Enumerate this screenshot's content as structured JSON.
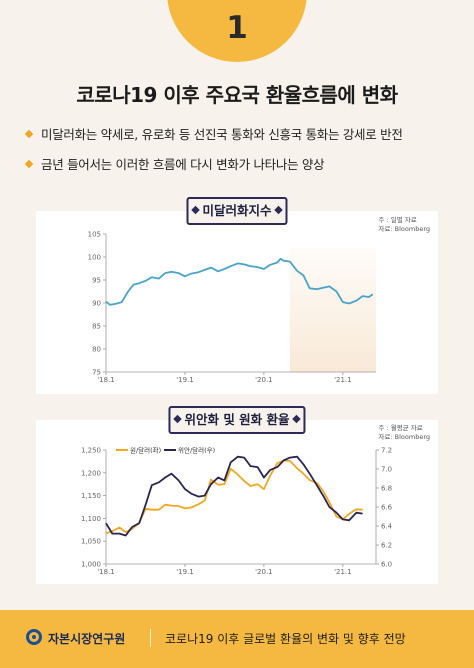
{
  "page_number": "1",
  "title": "코로나19 이후 주요국 환율흐름에 변화",
  "bullets": [
    "미달러화는 약세로, 유로화 등 선진국 통화와 신흥국 통화는 강세로 반전",
    "금년 들어서는 이러한 흐름에 다시 변화가 나타나는 양상"
  ],
  "colors": {
    "accent": "#f5b942",
    "dxy_line": "#4aa3c8",
    "krw_line": "#f0a823",
    "cny_line": "#2b2452",
    "shade": "#f8e7d3",
    "badge_border": "#2d2a57"
  },
  "footer": {
    "logo_icon": "kcmi-logo-icon",
    "org": "자본시장연구원",
    "report_title": "코로나19 이후 글로벌 환율의 변화 및 향후 전망"
  },
  "chart_data": [
    {
      "type": "line",
      "title": "미달러화지수",
      "note": [
        "주 : 일별 자료",
        "자료: Bloomberg"
      ],
      "ylim": [
        75,
        105
      ],
      "yticks": [
        "105",
        "100",
        "95",
        "90",
        "85",
        "80",
        "75"
      ],
      "xtick_labels": [
        "'18.1",
        "'19.1",
        "'20.1",
        "'21.1"
      ],
      "xlim": [
        2018.0,
        2021.42
      ],
      "shaded_region": [
        2020.33,
        2021.42
      ],
      "grid": false,
      "series": [
        {
          "color": "#4aa3c8",
          "x": [
            2018.0,
            2018.05,
            2018.12,
            2018.2,
            2018.28,
            2018.35,
            2018.42,
            2018.5,
            2018.58,
            2018.67,
            2018.75,
            2018.83,
            2018.92,
            2019.0,
            2019.08,
            2019.17,
            2019.25,
            2019.33,
            2019.42,
            2019.5,
            2019.58,
            2019.67,
            2019.75,
            2019.83,
            2019.92,
            2020.0,
            2020.08,
            2020.17,
            2020.21,
            2020.25,
            2020.33,
            2020.42,
            2020.5,
            2020.58,
            2020.67,
            2020.75,
            2020.83,
            2020.92,
            2021.0,
            2021.08,
            2021.17,
            2021.25,
            2021.33,
            2021.38
          ],
          "y": [
            90.3,
            89.6,
            89.8,
            90.2,
            92.5,
            94.0,
            94.3,
            94.8,
            95.6,
            95.3,
            96.5,
            96.8,
            96.5,
            95.8,
            96.4,
            96.7,
            97.2,
            97.7,
            96.9,
            97.4,
            98.0,
            98.6,
            98.4,
            98.0,
            97.8,
            97.4,
            98.3,
            98.8,
            99.6,
            99.2,
            99.0,
            97.0,
            96.0,
            93.2,
            93.0,
            93.3,
            93.6,
            92.5,
            90.2,
            89.9,
            90.5,
            91.5,
            91.3,
            91.9
          ]
        }
      ]
    },
    {
      "type": "line",
      "title": "위안화 및 원화 환율",
      "note": [
        "주 : 월평균 자료",
        "자료: Bloomberg"
      ],
      "x_range": [
        2018.0,
        2021.42
      ],
      "xtick_labels": [
        "'18.1",
        "'19.1",
        "'20.1",
        "'21.1"
      ],
      "ylim_left": [
        1000,
        1250
      ],
      "ylim_right": [
        6.0,
        7.2
      ],
      "yticks_left": [
        "1,250",
        "1,200",
        "1,150",
        "1,100",
        "1,050",
        "1,000"
      ],
      "yticks_right": [
        "7.2",
        "7.0",
        "6.8",
        "6.6",
        "6.4",
        "6.2",
        "6.0"
      ],
      "legend": "top-left",
      "grid": false,
      "series": [
        {
          "name": "원/달러(좌)",
          "axis": "left",
          "color": "#f0a823",
          "x": [
            2018.0,
            2018.08,
            2018.17,
            2018.25,
            2018.33,
            2018.42,
            2018.5,
            2018.58,
            2018.67,
            2018.75,
            2018.83,
            2018.92,
            2019.0,
            2019.08,
            2019.17,
            2019.25,
            2019.33,
            2019.42,
            2019.5,
            2019.58,
            2019.67,
            2019.75,
            2019.83,
            2019.92,
            2020.0,
            2020.08,
            2020.17,
            2020.25,
            2020.33,
            2020.42,
            2020.5,
            2020.58,
            2020.67,
            2020.75,
            2020.83,
            2020.92,
            2021.0,
            2021.08,
            2021.17,
            2021.25
          ],
          "y": [
            1067,
            1072,
            1080,
            1070,
            1077,
            1090,
            1121,
            1119,
            1119,
            1130,
            1128,
            1127,
            1122,
            1124,
            1131,
            1139,
            1185,
            1174,
            1175,
            1209,
            1196,
            1182,
            1171,
            1175,
            1164,
            1194,
            1221,
            1227,
            1226,
            1210,
            1198,
            1184,
            1178,
            1160,
            1135,
            1104,
            1098,
            1110,
            1120,
            1119
          ]
        },
        {
          "name": "위안/달러(우)",
          "axis": "right",
          "color": "#2b2452",
          "x": [
            2018.0,
            2018.08,
            2018.17,
            2018.25,
            2018.33,
            2018.42,
            2018.5,
            2018.58,
            2018.67,
            2018.75,
            2018.83,
            2018.92,
            2019.0,
            2019.08,
            2019.17,
            2019.25,
            2019.33,
            2019.42,
            2019.5,
            2019.58,
            2019.67,
            2019.75,
            2019.83,
            2019.92,
            2020.0,
            2020.08,
            2020.17,
            2020.25,
            2020.33,
            2020.42,
            2020.5,
            2020.58,
            2020.67,
            2020.75,
            2020.83,
            2020.92,
            2021.0,
            2021.08,
            2021.17,
            2021.25
          ],
          "y": [
            6.43,
            6.32,
            6.32,
            6.3,
            6.39,
            6.43,
            6.62,
            6.83,
            6.86,
            6.91,
            6.95,
            6.88,
            6.79,
            6.74,
            6.71,
            6.72,
            6.84,
            6.91,
            6.88,
            7.07,
            7.13,
            7.12,
            7.03,
            7.02,
            6.91,
            6.99,
            7.02,
            7.09,
            7.12,
            7.13,
            7.05,
            6.95,
            6.83,
            6.72,
            6.6,
            6.54,
            6.47,
            6.46,
            6.54,
            6.53
          ]
        }
      ]
    }
  ]
}
